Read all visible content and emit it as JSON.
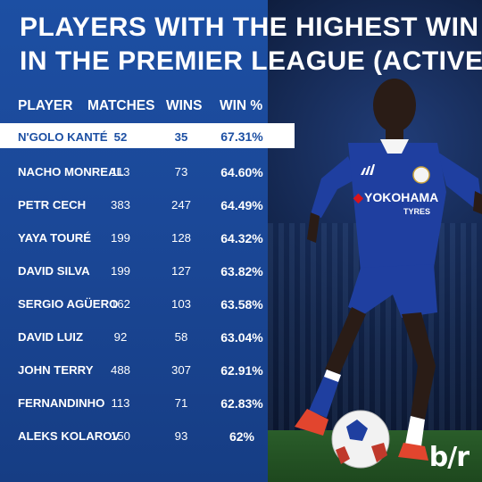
{
  "title": {
    "line1": "PLAYERS WITH THE HIGHEST WIN %",
    "line2": "IN THE PREMIER LEAGUE (ACTIVE)"
  },
  "headers": {
    "player": "PLAYER",
    "matches": "MATCHES",
    "wins": "WINS",
    "win_pct": "WIN %"
  },
  "rows": [
    {
      "player": "N'GOLO KANTÉ",
      "matches": "52",
      "wins": "35",
      "win_pct": "67.31%",
      "highlighted": true
    },
    {
      "player": "NACHO MONREAL",
      "matches": "113",
      "wins": "73",
      "win_pct": "64.60%"
    },
    {
      "player": "PETR CECH",
      "matches": "383",
      "wins": "247",
      "win_pct": "64.49%"
    },
    {
      "player": "YAYA TOURÉ",
      "matches": "199",
      "wins": "128",
      "win_pct": "64.32%"
    },
    {
      "player": "DAVID SILVA",
      "matches": "199",
      "wins": "127",
      "win_pct": "63.82%"
    },
    {
      "player": "SERGIO AGÜERO",
      "matches": "162",
      "wins": "103",
      "win_pct": "63.58%"
    },
    {
      "player": "DAVID LUIZ",
      "matches": "92",
      "wins": "58",
      "win_pct": "63.04%"
    },
    {
      "player": "JOHN TERRY",
      "matches": "488",
      "wins": "307",
      "win_pct": "62.91%"
    },
    {
      "player": "FERNANDINHO",
      "matches": "113",
      "wins": "71",
      "win_pct": "62.83%"
    },
    {
      "player": "ALEKS KOLAROV",
      "matches": "150",
      "wins": "93",
      "win_pct": "62%"
    }
  ],
  "photo": {
    "sponsor": "YOKOHAMA",
    "sponsor_sub": "TYRES",
    "brand_icon": "adidas-icon",
    "crest_icon": "chelsea-crest-icon"
  },
  "logo": "b/r",
  "colors": {
    "background": "#1c4fa3",
    "highlight_row": "#ffffff",
    "highlight_text": "#1c4fa3",
    "jersey": "#1f3fa0",
    "sponsor_red": "#d8141c"
  }
}
